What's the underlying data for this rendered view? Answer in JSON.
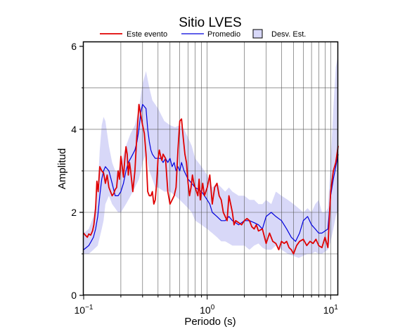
{
  "chart_data": {
    "type": "line",
    "title": "Sitio LVES",
    "xlabel": "Periodo (s)",
    "ylabel": "Amplitud",
    "x_scale": "log",
    "xlim": [
      0.1,
      11.5
    ],
    "ylim": [
      0,
      6.1
    ],
    "x_ticks": [
      {
        "value": 0.1,
        "base": "10",
        "exp": "−1"
      },
      {
        "value": 1,
        "label": "10",
        "exp": "0"
      },
      {
        "value": 10,
        "label": "10",
        "exp": "1"
      }
    ],
    "y_ticks": [
      0,
      2,
      4,
      6
    ],
    "grid": true,
    "legend_position": "top",
    "colors": {
      "event": "#e00000",
      "mean": "#0000dd",
      "band": "#d8d8f8",
      "band_edge": "#000000"
    },
    "series": [
      {
        "name": "Este evento",
        "x": [
          0.1,
          0.103,
          0.107,
          0.11,
          0.114,
          0.118,
          0.121,
          0.125,
          0.128,
          0.131,
          0.135,
          0.14,
          0.145,
          0.15,
          0.155,
          0.16,
          0.165,
          0.17,
          0.175,
          0.18,
          0.185,
          0.19,
          0.195,
          0.2,
          0.205,
          0.21,
          0.215,
          0.22,
          0.225,
          0.23,
          0.235,
          0.24,
          0.25,
          0.26,
          0.27,
          0.28,
          0.29,
          0.3,
          0.31,
          0.32,
          0.33,
          0.34,
          0.35,
          0.36,
          0.37,
          0.38,
          0.39,
          0.4,
          0.41,
          0.42,
          0.43,
          0.44,
          0.46,
          0.48,
          0.5,
          0.52,
          0.54,
          0.56,
          0.58,
          0.6,
          0.62,
          0.64,
          0.66,
          0.68,
          0.7,
          0.72,
          0.74,
          0.76,
          0.78,
          0.8,
          0.82,
          0.84,
          0.86,
          0.88,
          0.9,
          0.92,
          0.95,
          1.0,
          1.05,
          1.1,
          1.15,
          1.2,
          1.25,
          1.3,
          1.35,
          1.4,
          1.45,
          1.5,
          1.55,
          1.6,
          1.65,
          1.7,
          1.8,
          1.9,
          2.0,
          2.1,
          2.2,
          2.3,
          2.4,
          2.5,
          2.6,
          2.8,
          3.0,
          3.2,
          3.4,
          3.6,
          3.8,
          4.0,
          4.2,
          4.4,
          4.6,
          4.8,
          5.0,
          5.3,
          5.6,
          6.0,
          6.4,
          6.8,
          7.2,
          7.6,
          8.0,
          8.5,
          9.0,
          9.5,
          10.0,
          10.5,
          11.0,
          11.5
        ],
        "values": [
          1.5,
          1.45,
          1.4,
          1.48,
          1.45,
          1.55,
          1.7,
          2.1,
          2.75,
          2.5,
          3.1,
          3.0,
          2.95,
          2.7,
          2.9,
          2.6,
          2.5,
          2.4,
          2.45,
          2.55,
          2.6,
          3.0,
          2.8,
          3.35,
          3.1,
          2.85,
          3.25,
          3.58,
          3.4,
          2.9,
          3.2,
          3.0,
          2.5,
          3.0,
          3.9,
          4.6,
          4.35,
          4.1,
          3.9,
          3.4,
          2.5,
          2.4,
          2.4,
          2.5,
          2.2,
          2.3,
          2.7,
          3.3,
          3.5,
          3.35,
          3.25,
          3.4,
          3.3,
          2.5,
          2.2,
          2.3,
          2.4,
          2.6,
          3.5,
          4.2,
          4.25,
          3.8,
          3.4,
          3.2,
          2.7,
          2.4,
          2.6,
          2.9,
          2.7,
          2.6,
          2.5,
          2.4,
          2.8,
          2.3,
          2.5,
          2.7,
          2.4,
          2.6,
          2.9,
          2.2,
          2.6,
          2.7,
          2.4,
          2.3,
          2.0,
          1.9,
          1.8,
          2.4,
          2.2,
          2.0,
          1.7,
          1.8,
          1.75,
          1.7,
          1.8,
          1.85,
          1.8,
          1.65,
          1.6,
          1.7,
          1.55,
          1.6,
          1.25,
          1.5,
          1.3,
          1.25,
          1.1,
          1.3,
          1.25,
          1.3,
          1.15,
          1.1,
          1.0,
          1.2,
          1.3,
          1.35,
          1.2,
          1.3,
          1.25,
          1.35,
          1.2,
          1.15,
          1.4,
          1.15,
          2.5,
          3.0,
          3.2,
          3.6
        ]
      },
      {
        "name": "Promedio",
        "x": [
          0.1,
          0.105,
          0.11,
          0.115,
          0.12,
          0.125,
          0.13,
          0.135,
          0.14,
          0.145,
          0.15,
          0.16,
          0.17,
          0.18,
          0.19,
          0.2,
          0.21,
          0.22,
          0.23,
          0.24,
          0.25,
          0.26,
          0.27,
          0.28,
          0.29,
          0.3,
          0.31,
          0.32,
          0.33,
          0.34,
          0.35,
          0.36,
          0.38,
          0.4,
          0.42,
          0.44,
          0.46,
          0.48,
          0.5,
          0.52,
          0.54,
          0.56,
          0.58,
          0.6,
          0.62,
          0.65,
          0.7,
          0.75,
          0.8,
          0.85,
          0.9,
          0.95,
          1.0,
          1.05,
          1.1,
          1.2,
          1.3,
          1.4,
          1.5,
          1.6,
          1.7,
          1.8,
          1.9,
          2.0,
          2.2,
          2.4,
          2.6,
          2.8,
          3.0,
          3.3,
          3.6,
          4.0,
          4.4,
          4.8,
          5.2,
          5.6,
          6.0,
          6.5,
          7.0,
          7.5,
          8.0,
          8.5,
          9.0,
          9.5,
          10.0,
          10.5,
          11.0,
          11.5
        ],
        "values": [
          1.1,
          1.15,
          1.2,
          1.3,
          1.4,
          1.6,
          1.9,
          2.4,
          2.8,
          3.0,
          3.1,
          3.0,
          2.7,
          2.4,
          2.4,
          2.5,
          2.7,
          3.0,
          3.2,
          3.3,
          3.4,
          3.5,
          3.7,
          4.0,
          4.4,
          4.6,
          4.55,
          4.5,
          4.0,
          3.7,
          3.5,
          3.4,
          3.3,
          3.3,
          3.3,
          3.2,
          3.3,
          3.2,
          3.3,
          3.1,
          3.2,
          3.0,
          3.1,
          3.0,
          3.2,
          3.0,
          2.8,
          2.7,
          2.6,
          2.55,
          2.5,
          2.4,
          2.3,
          2.2,
          2.0,
          1.9,
          1.8,
          1.8,
          1.9,
          1.8,
          1.75,
          1.7,
          1.75,
          1.8,
          1.8,
          1.75,
          1.7,
          1.6,
          1.9,
          2.0,
          1.9,
          1.8,
          1.6,
          1.4,
          1.3,
          1.5,
          1.8,
          1.9,
          1.7,
          1.6,
          1.5,
          1.5,
          1.55,
          1.6,
          2.4,
          2.8,
          3.1,
          3.4
        ]
      }
    ],
    "band": {
      "name": "Desv. Est.",
      "x": [
        0.1,
        0.11,
        0.12,
        0.13,
        0.135,
        0.14,
        0.145,
        0.15,
        0.16,
        0.17,
        0.18,
        0.19,
        0.2,
        0.22,
        0.24,
        0.26,
        0.28,
        0.3,
        0.32,
        0.34,
        0.36,
        0.38,
        0.4,
        0.45,
        0.5,
        0.55,
        0.6,
        0.65,
        0.7,
        0.75,
        0.8,
        0.9,
        1.0,
        1.1,
        1.2,
        1.3,
        1.4,
        1.5,
        1.6,
        1.8,
        2.0,
        2.2,
        2.4,
        2.6,
        2.8,
        3.0,
        3.3,
        3.6,
        4.0,
        4.5,
        5.0,
        5.5,
        6.0,
        6.5,
        7.0,
        7.5,
        8.0,
        8.5,
        9.0,
        9.5,
        10.0,
        10.5,
        11.0,
        11.5
      ],
      "upper": [
        1.5,
        1.6,
        1.9,
        2.6,
        3.5,
        4.1,
        4.3,
        4.2,
        3.6,
        3.2,
        3.0,
        3.0,
        3.2,
        3.6,
        3.9,
        4.1,
        4.5,
        5.1,
        5.4,
        5.0,
        4.7,
        4.6,
        4.5,
        4.2,
        4.1,
        4.05,
        4.1,
        4.0,
        3.8,
        3.6,
        3.3,
        3.1,
        2.9,
        2.6,
        2.7,
        2.6,
        2.5,
        2.6,
        2.5,
        2.4,
        2.4,
        2.3,
        2.3,
        2.2,
        2.2,
        2.3,
        2.2,
        2.5,
        2.4,
        2.3,
        2.2,
        2.1,
        2.0,
        2.1,
        2.0,
        2.2,
        2.3,
        2.0,
        2.0,
        2.1,
        3.2,
        4.5,
        5.5,
        5.8
      ],
      "lower": [
        1.0,
        1.0,
        1.1,
        1.2,
        1.4,
        1.6,
        1.8,
        2.2,
        2.4,
        2.2,
        2.1,
        2.0,
        2.0,
        2.2,
        2.4,
        2.6,
        2.8,
        3.2,
        3.4,
        3.0,
        2.8,
        2.6,
        2.6,
        2.5,
        2.5,
        2.4,
        2.3,
        2.2,
        2.1,
        2.0,
        1.8,
        1.7,
        1.6,
        1.5,
        1.4,
        1.3,
        1.3,
        1.25,
        1.2,
        1.2,
        1.2,
        1.1,
        1.2,
        1.25,
        1.15,
        1.1,
        1.1,
        1.2,
        1.1,
        1.0,
        0.95,
        0.9,
        0.95,
        1.0,
        1.0,
        1.05,
        1.0,
        1.0,
        1.05,
        1.1,
        1.3,
        1.6,
        1.9,
        2.1
      ]
    }
  }
}
